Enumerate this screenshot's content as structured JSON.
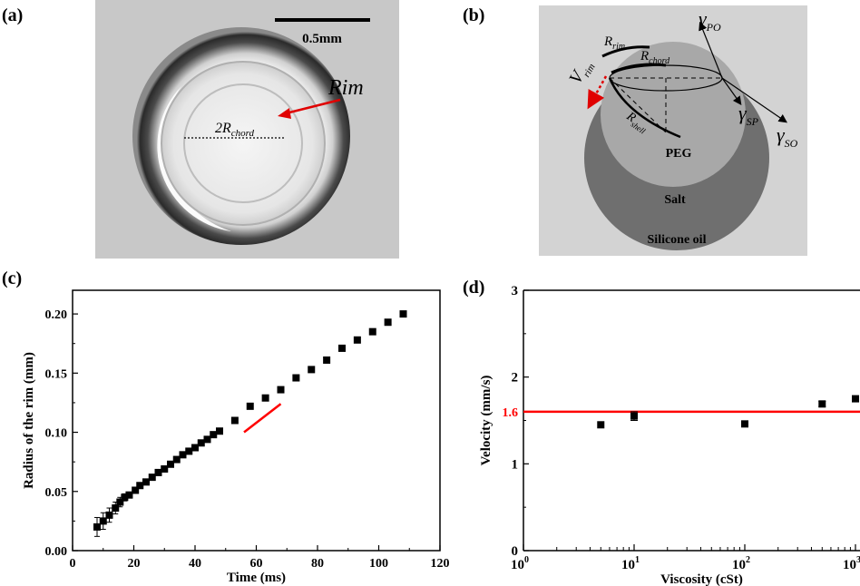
{
  "panels": {
    "a": {
      "label": "(a)",
      "scale_bar_label": "0.5mm",
      "rim_label": "Rim",
      "chord_label": {
        "prefix": "2R",
        "sub": "chord"
      }
    },
    "b": {
      "label": "(b)",
      "labels": {
        "gamma_po": {
          "main": "γ",
          "sub": "PO"
        },
        "gamma_sp": {
          "main": "γ",
          "sub": "SP"
        },
        "gamma_so": {
          "main": "γ",
          "sub": "SO"
        },
        "r_rim": {
          "main": "R",
          "sub": "rim"
        },
        "r_chord": {
          "main": "R",
          "sub": "chord"
        },
        "r_shell": {
          "main": "R",
          "sub": "shell"
        },
        "v_rim": {
          "main": "V",
          "sub": "rim"
        },
        "peg": "PEG",
        "salt": "Salt",
        "silicone_oil": "Silicone oil"
      }
    },
    "c": {
      "label": "(c)"
    },
    "d": {
      "label": "(d)"
    }
  },
  "chart_data": [
    {
      "panel": "c",
      "type": "scatter",
      "xlabel": "Time (ms)",
      "ylabel": "Radius of the rim (mm)",
      "xlim": [
        0,
        120
      ],
      "ylim": [
        0,
        0.22
      ],
      "xticks": [
        0,
        20,
        40,
        60,
        80,
        100,
        120
      ],
      "yticks": [
        0.0,
        0.05,
        0.1,
        0.15,
        0.2
      ],
      "ytick_labels": [
        "0.00",
        "0.05",
        "0.10",
        "0.15",
        "0.20"
      ],
      "marker_color": "#000000",
      "points": [
        {
          "x": 8,
          "y": 0.02,
          "err": 0.008
        },
        {
          "x": 10,
          "y": 0.025,
          "err": 0.007
        },
        {
          "x": 12,
          "y": 0.03,
          "err": 0.006
        },
        {
          "x": 14,
          "y": 0.036,
          "err": 0.005
        },
        {
          "x": 15.5,
          "y": 0.041,
          "err": 0.004
        },
        {
          "x": 17,
          "y": 0.045,
          "err": 0.003
        },
        {
          "x": 18.5,
          "y": 0.047
        },
        {
          "x": 20.5,
          "y": 0.051
        },
        {
          "x": 22,
          "y": 0.055
        },
        {
          "x": 24,
          "y": 0.058
        },
        {
          "x": 26,
          "y": 0.062
        },
        {
          "x": 28,
          "y": 0.066
        },
        {
          "x": 30,
          "y": 0.069
        },
        {
          "x": 32,
          "y": 0.073
        },
        {
          "x": 34,
          "y": 0.077
        },
        {
          "x": 36,
          "y": 0.081
        },
        {
          "x": 38,
          "y": 0.084
        },
        {
          "x": 40,
          "y": 0.087
        },
        {
          "x": 42,
          "y": 0.091
        },
        {
          "x": 44,
          "y": 0.094
        },
        {
          "x": 46,
          "y": 0.098
        },
        {
          "x": 48,
          "y": 0.101
        },
        {
          "x": 53,
          "y": 0.11
        },
        {
          "x": 58,
          "y": 0.122
        },
        {
          "x": 63,
          "y": 0.129
        },
        {
          "x": 68,
          "y": 0.136
        },
        {
          "x": 73,
          "y": 0.146
        },
        {
          "x": 78,
          "y": 0.153
        },
        {
          "x": 83,
          "y": 0.161
        },
        {
          "x": 88,
          "y": 0.171
        },
        {
          "x": 93,
          "y": 0.178
        },
        {
          "x": 98,
          "y": 0.185
        },
        {
          "x": 103,
          "y": 0.193
        },
        {
          "x": 108,
          "y": 0.2
        }
      ],
      "reference_line": {
        "color": "#ff0000",
        "x": [
          56,
          68
        ],
        "y": [
          0.1,
          0.124
        ]
      }
    },
    {
      "panel": "d",
      "type": "scatter",
      "xlabel": "Viscosity (cSt)",
      "ylabel": "Velocity (mm/s)",
      "xscale": "log",
      "xlim": [
        1,
        1000
      ],
      "ylim": [
        0,
        3
      ],
      "xticks": [
        1,
        10,
        100,
        1000
      ],
      "xtick_labels": [
        {
          "base": "10",
          "exp": "0"
        },
        {
          "base": "10",
          "exp": "1"
        },
        {
          "base": "10",
          "exp": "2"
        },
        {
          "base": "10",
          "exp": "3"
        }
      ],
      "yticks": [
        0,
        1,
        2,
        3
      ],
      "marker_color": "#000000",
      "points": [
        {
          "x": 5,
          "y": 1.45
        },
        {
          "x": 10,
          "y": 1.55,
          "err": 0.05
        },
        {
          "x": 100,
          "y": 1.46
        },
        {
          "x": 500,
          "y": 1.69,
          "err": 0.03
        },
        {
          "x": 1000,
          "y": 1.75
        }
      ],
      "hline": {
        "y": 1.6,
        "label": "1.6",
        "color": "#ff0000"
      }
    }
  ]
}
